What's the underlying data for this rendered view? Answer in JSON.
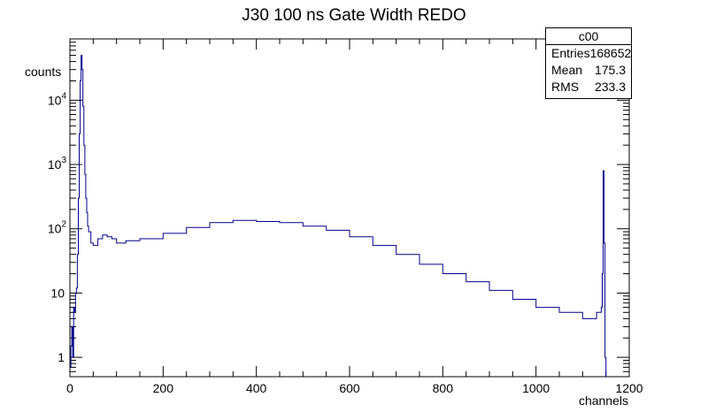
{
  "chart_data": {
    "type": "line",
    "title": "J30 100 ns Gate Width REDO",
    "xlabel": "channels",
    "ylabel": "counts",
    "xlim": [
      0,
      1200
    ],
    "ylim": [
      0.5,
      90000
    ],
    "yscale": "log",
    "x_ticks": [
      "0",
      "200",
      "400",
      "600",
      "800",
      "1000",
      "1200"
    ],
    "y_ticks": [
      {
        "value": 1,
        "label": "1"
      },
      {
        "value": 10,
        "label": "10"
      },
      {
        "value": 100,
        "base": "10",
        "exp": "2"
      },
      {
        "value": 1000,
        "base": "10",
        "exp": "3"
      },
      {
        "value": 10000,
        "base": "10",
        "exp": "4"
      }
    ],
    "series_color": "#00008b",
    "series": [
      {
        "x": [
          0,
          2,
          4,
          6,
          8,
          10,
          12,
          14,
          16,
          18,
          20,
          22,
          24,
          26,
          28,
          30,
          32,
          34,
          36,
          38,
          40,
          45,
          50,
          60,
          70,
          80,
          90,
          100,
          120,
          150,
          200,
          250,
          300,
          350,
          400,
          450,
          500,
          550,
          600,
          650,
          700,
          750,
          800,
          850,
          900,
          950,
          1000,
          1050,
          1100,
          1130,
          1140,
          1142,
          1144,
          1146,
          1148,
          1150
        ],
        "y": [
          0.7,
          1.5,
          3,
          1,
          6,
          5,
          10,
          12,
          40,
          300,
          3000,
          20000,
          50000,
          30000,
          8000,
          2000,
          700,
          300,
          180,
          110,
          90,
          60,
          55,
          70,
          80,
          75,
          70,
          60,
          65,
          70,
          85,
          105,
          125,
          135,
          130,
          125,
          110,
          95,
          75,
          55,
          40,
          28,
          20,
          15,
          11,
          8,
          6,
          5,
          4,
          5,
          6,
          20,
          800,
          60,
          1,
          0.5
        ]
      }
    ]
  },
  "stats_box": {
    "name": "c00",
    "rows": [
      {
        "label": "Entries",
        "value": "168652"
      },
      {
        "label": "Mean",
        "value": "175.3"
      },
      {
        "label": "RMS",
        "value": "233.3"
      }
    ]
  }
}
